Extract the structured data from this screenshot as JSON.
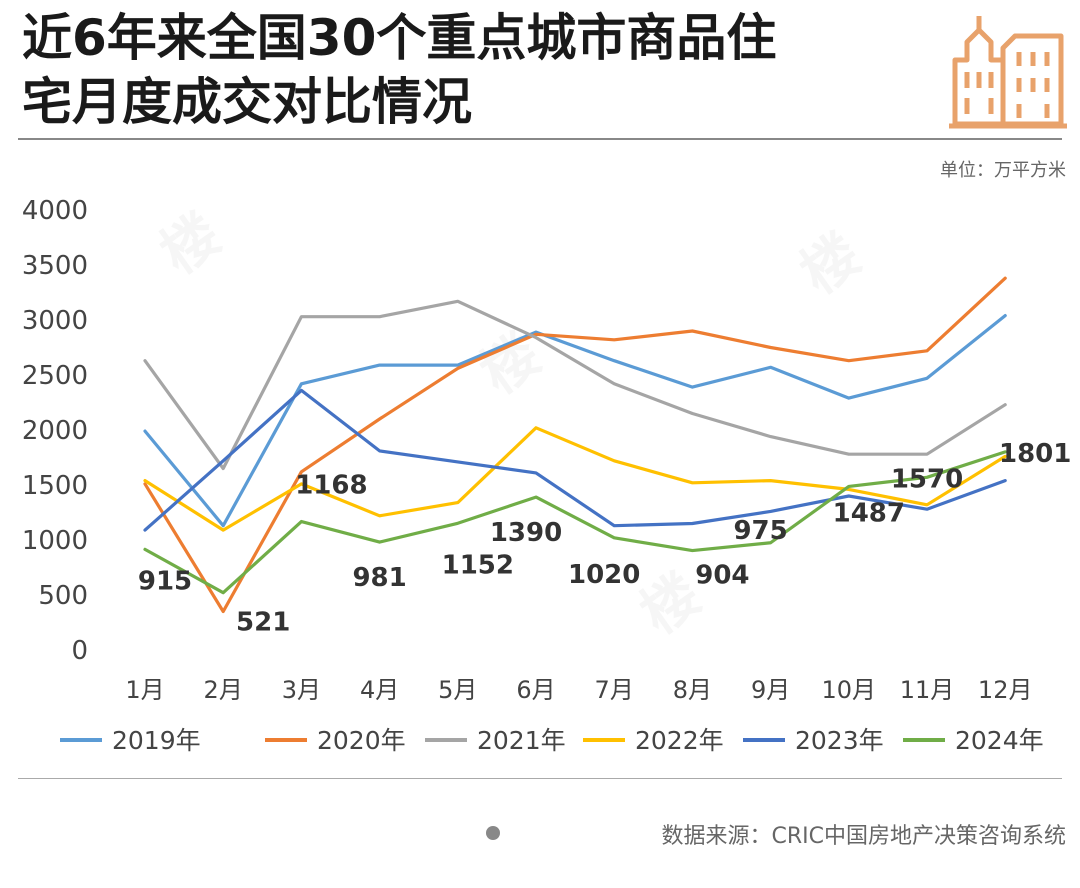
{
  "header": {
    "title_line1": "近6年来全国30个重点城市商品住",
    "title_line2": "宅月度成交对比情况",
    "unit": "单位：万平方米",
    "icon": "building-icon",
    "accent_color": "#E8A26B"
  },
  "source": "数据来源：CRIC中国房地产决策咨询系统",
  "chart_data": {
    "type": "line",
    "title": "近6年来全国30个重点城市商品住宅月度成交对比情况",
    "ylabel": "万平方米",
    "xlabel": "",
    "ylim": [
      0,
      4000
    ],
    "yticks": [
      0,
      500,
      1000,
      1500,
      2000,
      2500,
      3000,
      3500,
      4000
    ],
    "categories": [
      "1月",
      "2月",
      "3月",
      "4月",
      "5月",
      "6月",
      "7月",
      "8月",
      "9月",
      "10月",
      "11月",
      "12月"
    ],
    "legend_position": "bottom",
    "series": [
      {
        "name": "2019年",
        "color": "#5B9BD5",
        "values": [
          1990,
          1130,
          2420,
          2590,
          2590,
          2890,
          2630,
          2390,
          2570,
          2290,
          2470,
          3040
        ]
      },
      {
        "name": "2020年",
        "color": "#ED7D31",
        "values": [
          1510,
          350,
          1620,
          2100,
          2560,
          2870,
          2820,
          2900,
          2750,
          2630,
          2720,
          3380
        ]
      },
      {
        "name": "2021年",
        "color": "#A5A5A5",
        "values": [
          2630,
          1650,
          3030,
          3030,
          3170,
          2840,
          2420,
          2150,
          1940,
          1780,
          1780,
          2230
        ]
      },
      {
        "name": "2022年",
        "color": "#FFC000",
        "values": [
          1540,
          1090,
          1510,
          1220,
          1340,
          2020,
          1720,
          1520,
          1540,
          1460,
          1320,
          1760
        ]
      },
      {
        "name": "2023年",
        "color": "#4472C4",
        "values": [
          1090,
          1720,
          2360,
          1810,
          1710,
          1610,
          1130,
          1150,
          1260,
          1400,
          1280,
          1540
        ]
      },
      {
        "name": "2024年",
        "color": "#70AD47",
        "values": [
          915,
          521,
          1168,
          981,
          1152,
          1390,
          1020,
          904,
          975,
          1487,
          1570,
          1801
        ]
      }
    ],
    "data_labels": {
      "series": "2024年",
      "labels": [
        "915",
        "521",
        "1168",
        "981",
        "1152",
        "1390",
        "1020",
        "904",
        "975",
        "1487",
        "1570",
        "1801"
      ]
    }
  }
}
